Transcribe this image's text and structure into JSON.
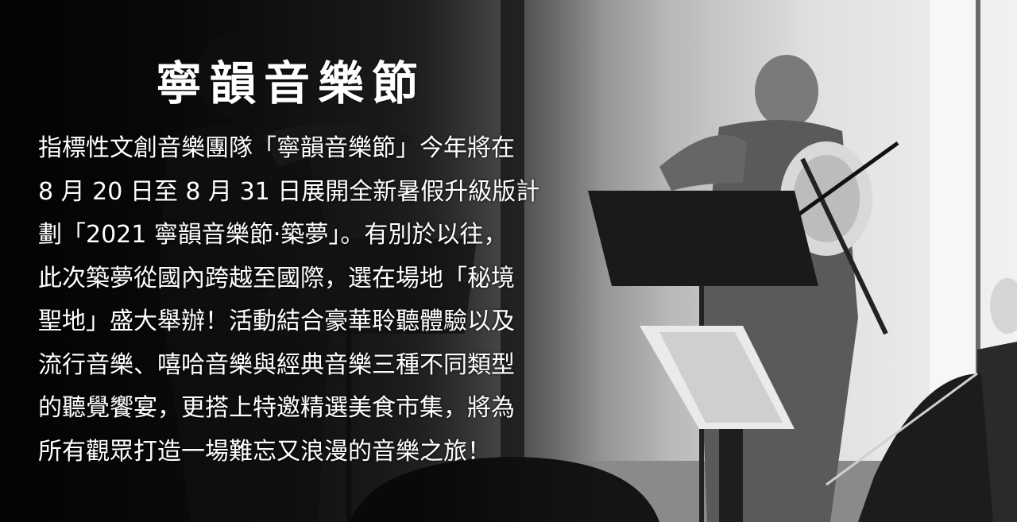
{
  "title": "寧韻音樂節",
  "paragraph_lines": [
    "指標性文創音樂團隊「寧韻音樂節」今年將在",
    "8 月 20 日至 8 月 31 日展開全新暑假升級版計",
    "劃「2021 寧韻音樂節‧築夢」。有別於以往，",
    "此次築夢從國內跨越至國際，選在場地「秘境",
    "聖地」盛大舉辦！活動結合豪華聆聽體驗以及",
    "流行音樂、嘻哈音樂與經典音樂三種不同類型",
    "的聽覺饗宴，更搭上特邀精選美食市集，將為",
    "所有觀眾打造一場難忘又浪漫的音樂之旅！"
  ]
}
